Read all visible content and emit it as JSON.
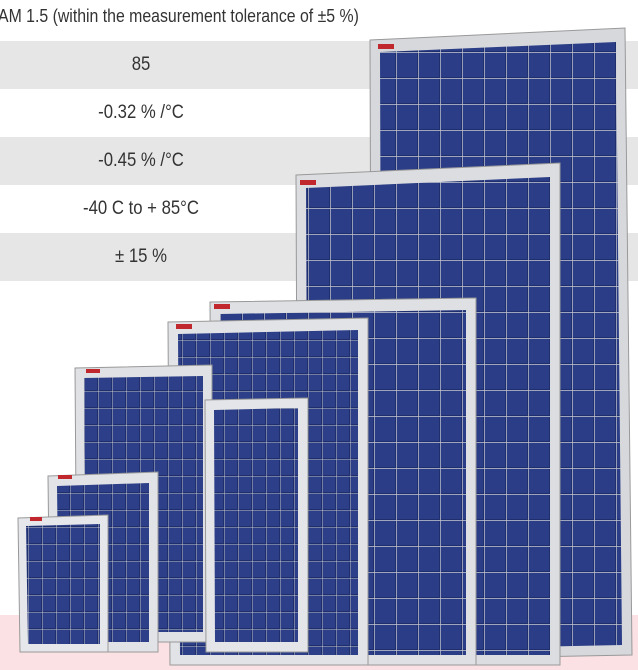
{
  "header": {
    "text": "AM 1.5 (within the measurement tolerance of  ±5 %)"
  },
  "table": {
    "rows": [
      "85",
      "-0.32 % /°C",
      "-0.45 % /°C",
      "-40 C to + 85°C",
      "± 15 %"
    ]
  }
}
